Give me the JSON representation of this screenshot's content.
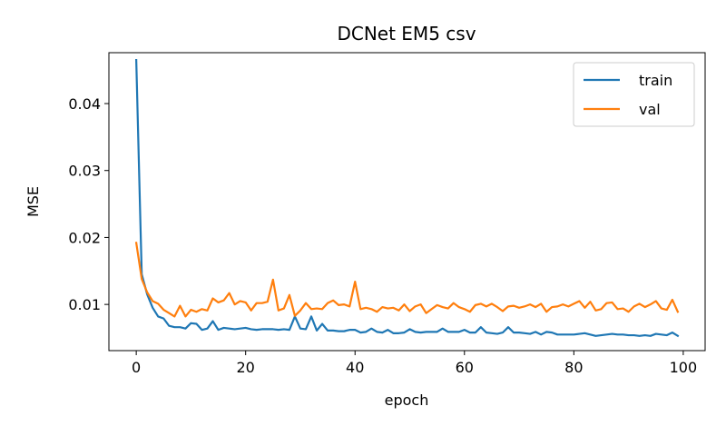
{
  "chart_data": {
    "type": "line",
    "title": "DCNet EM5 csv",
    "xlabel": "epoch",
    "ylabel": "MSE",
    "xlim": [
      -5,
      104
    ],
    "ylim": [
      0.0031,
      0.0476
    ],
    "xticks": [
      0,
      20,
      40,
      60,
      80,
      100
    ],
    "xtick_labels": [
      "0",
      "20",
      "40",
      "60",
      "80",
      "100"
    ],
    "yticks": [
      0.01,
      0.02,
      0.03,
      0.04
    ],
    "ytick_labels": [
      "0.01",
      "0.02",
      "0.03",
      "0.04"
    ],
    "grid": false,
    "legend": "top-right",
    "series": [
      {
        "name": "train",
        "color": "#1f77b4",
        "values": [
          0.0465,
          0.0145,
          0.0115,
          0.0095,
          0.0082,
          0.0079,
          0.0068,
          0.0066,
          0.0066,
          0.0064,
          0.0072,
          0.0071,
          0.0062,
          0.0064,
          0.0075,
          0.0062,
          0.0065,
          0.0064,
          0.0063,
          0.0064,
          0.0065,
          0.0063,
          0.0062,
          0.0063,
          0.0063,
          0.0063,
          0.0062,
          0.0063,
          0.0062,
          0.0082,
          0.0064,
          0.0063,
          0.0082,
          0.0061,
          0.0071,
          0.0061,
          0.0061,
          0.006,
          0.006,
          0.0062,
          0.0062,
          0.0058,
          0.0059,
          0.0064,
          0.0059,
          0.0058,
          0.0062,
          0.0057,
          0.0057,
          0.0058,
          0.0063,
          0.0059,
          0.0058,
          0.0059,
          0.0059,
          0.0059,
          0.0064,
          0.0059,
          0.0059,
          0.0059,
          0.0062,
          0.0058,
          0.0058,
          0.0066,
          0.0058,
          0.0057,
          0.0056,
          0.0058,
          0.0066,
          0.0058,
          0.0058,
          0.0057,
          0.0056,
          0.0059,
          0.0055,
          0.0059,
          0.0058,
          0.0055,
          0.0055,
          0.0055,
          0.0055,
          0.0056,
          0.0057,
          0.0055,
          0.0053,
          0.0054,
          0.0055,
          0.0056,
          0.0055,
          0.0055,
          0.0054,
          0.0054,
          0.0053,
          0.0054,
          0.0053,
          0.0056,
          0.0055,
          0.0054,
          0.0058,
          0.0053
        ]
      },
      {
        "name": "val",
        "color": "#ff7f0e",
        "values": [
          0.0192,
          0.0138,
          0.0118,
          0.0105,
          0.0101,
          0.0092,
          0.0087,
          0.0082,
          0.0098,
          0.0082,
          0.0092,
          0.0089,
          0.0093,
          0.0091,
          0.0109,
          0.0103,
          0.0106,
          0.0117,
          0.01,
          0.0105,
          0.0103,
          0.0091,
          0.0102,
          0.0102,
          0.0104,
          0.0137,
          0.0091,
          0.0094,
          0.0114,
          0.0083,
          0.0091,
          0.0102,
          0.0093,
          0.0094,
          0.0093,
          0.0102,
          0.0106,
          0.0099,
          0.01,
          0.0097,
          0.0134,
          0.0093,
          0.0095,
          0.0093,
          0.0089,
          0.0096,
          0.0094,
          0.0095,
          0.0091,
          0.01,
          0.009,
          0.0097,
          0.01,
          0.0087,
          0.0093,
          0.0099,
          0.0096,
          0.0094,
          0.0102,
          0.0096,
          0.0093,
          0.0089,
          0.0099,
          0.0101,
          0.0097,
          0.0101,
          0.0096,
          0.009,
          0.0097,
          0.0098,
          0.0095,
          0.0097,
          0.01,
          0.0096,
          0.0101,
          0.0089,
          0.0096,
          0.0097,
          0.01,
          0.0097,
          0.0101,
          0.0105,
          0.0095,
          0.0104,
          0.0091,
          0.0093,
          0.0102,
          0.0103,
          0.0093,
          0.0094,
          0.0089,
          0.0097,
          0.0101,
          0.0096,
          0.01,
          0.0105,
          0.0094,
          0.0092,
          0.0107,
          0.0089
        ]
      }
    ]
  }
}
